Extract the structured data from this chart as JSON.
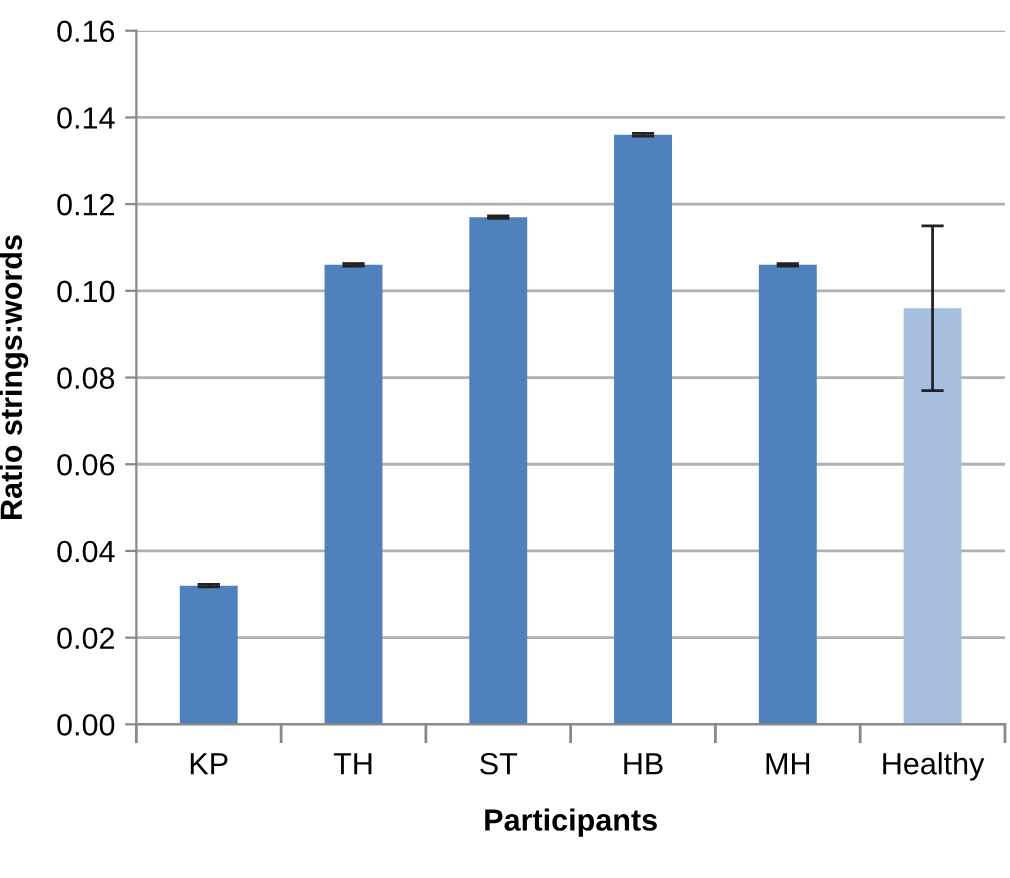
{
  "chart_data": {
    "type": "bar",
    "xlabel": "Participants",
    "ylabel": "Ratio strings:words",
    "categories": [
      "KP",
      "TH",
      "ST",
      "HB",
      "MH",
      "Healthy"
    ],
    "values": [
      0.032,
      0.106,
      0.117,
      0.136,
      0.106,
      0.096
    ],
    "colors": [
      "#4f81bd",
      "#4f81bd",
      "#4f81bd",
      "#4f81bd",
      "#4f81bd",
      "#a7bfde"
    ],
    "errors": [
      0.0003,
      0.0003,
      0.0003,
      0.0003,
      0.0003,
      0.019
    ],
    "ylim": [
      0,
      0.16
    ],
    "yticks": [
      {
        "value": 0,
        "label": "0.00"
      },
      {
        "value": 0.02,
        "label": "0.02"
      },
      {
        "value": 0.04,
        "label": "0.04"
      },
      {
        "value": 0.06,
        "label": "0.06"
      },
      {
        "value": 0.08,
        "label": "0.08"
      },
      {
        "value": 0.1,
        "label": "0.10"
      },
      {
        "value": 0.12,
        "label": "0.12"
      },
      {
        "value": 0.14,
        "label": "0.14"
      },
      {
        "value": 0.16,
        "label": "0.16"
      }
    ],
    "grid": "y"
  }
}
